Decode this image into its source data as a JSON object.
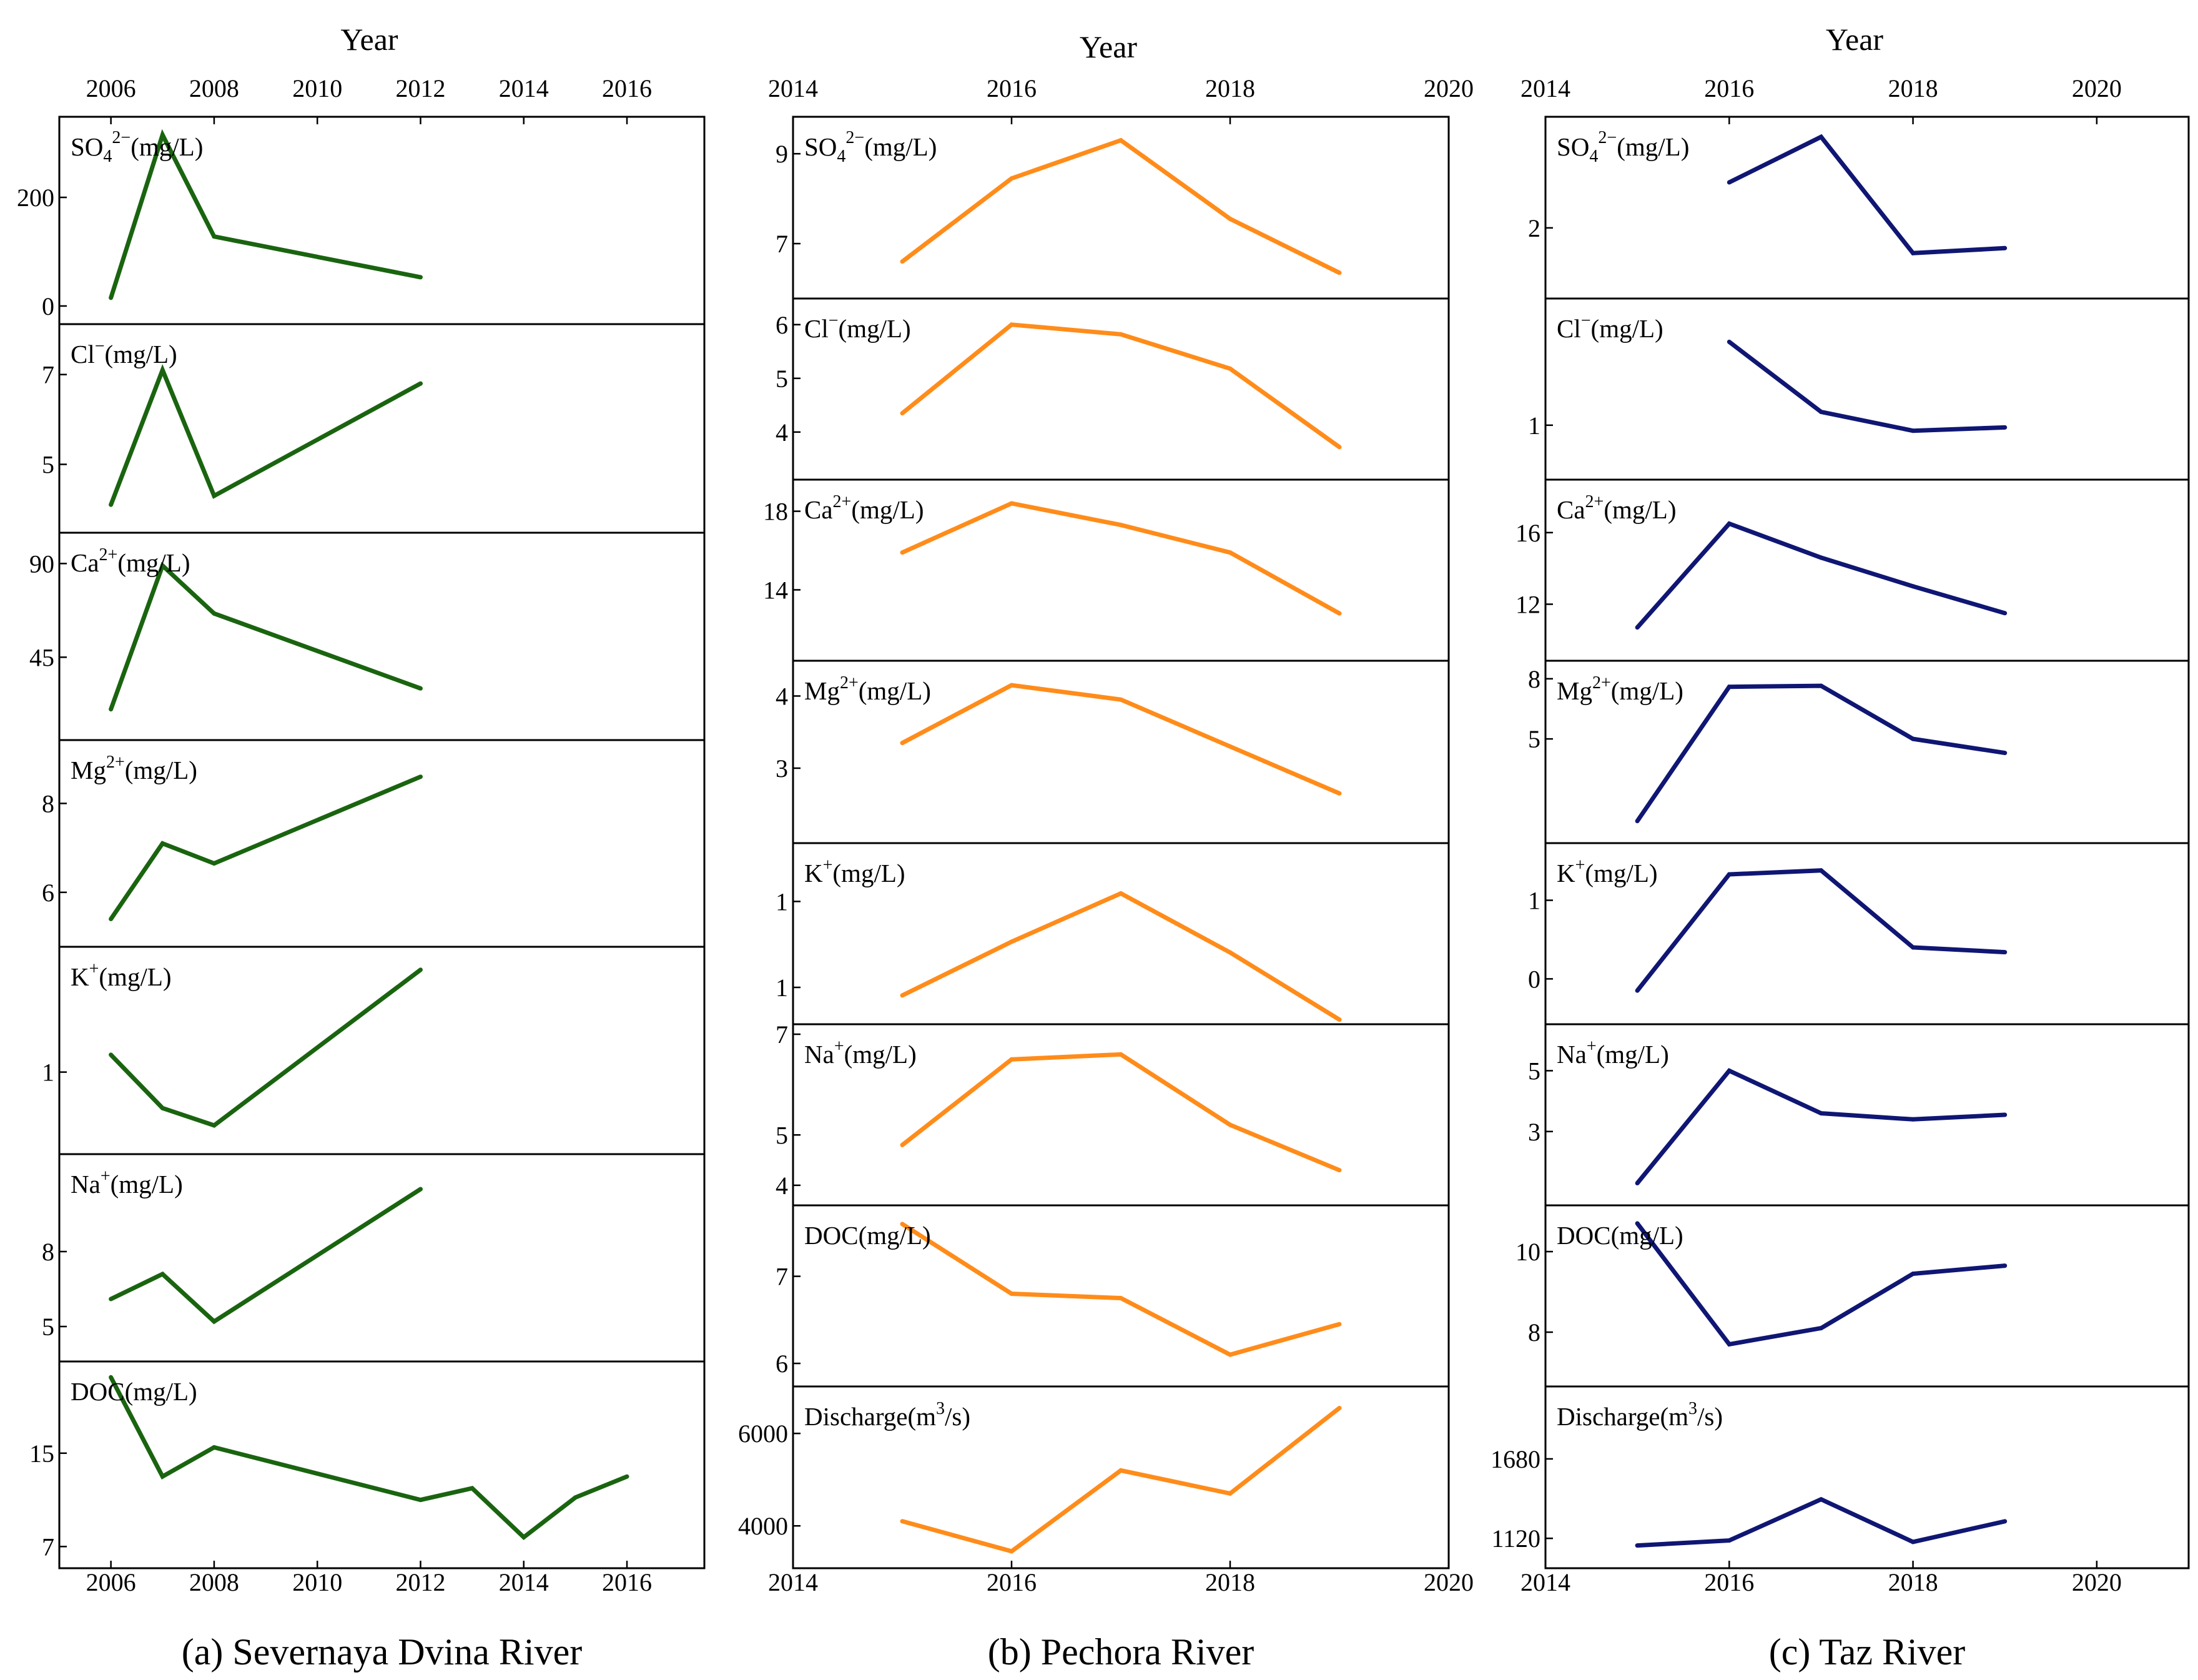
{
  "chart_data": [
    {
      "type": "line",
      "caption": "(a) Severnaya Dvina River",
      "xlabel": "Year",
      "color": "#1a6410",
      "xticks": [
        2006,
        2008,
        2010,
        2012,
        2014,
        2016
      ],
      "xlim": [
        2005,
        2017.5
      ],
      "panels": [
        {
          "label_main": "SO",
          "label_sub": "4",
          "label_sup": "2−",
          "label_tail": "(mg/L)",
          "ylim": [
            -15,
            330
          ],
          "yticks": [
            {
              "v": 0,
              "t": "0"
            },
            {
              "v": 200,
              "t": "200"
            }
          ],
          "x": [
            2006,
            2007,
            2008,
            2012
          ],
          "y": [
            15,
            315,
            128,
            53
          ]
        },
        {
          "label_main": "Cl",
          "label_sup": "−",
          "label_tail": "(mg/L)",
          "ylim": [
            3.7,
            7.9
          ],
          "yticks": [
            {
              "v": 5,
              "t": "5"
            },
            {
              "v": 7,
              "t": "7"
            }
          ],
          "x": [
            2006,
            2007,
            2008,
            2012
          ],
          "y": [
            4.1,
            7.1,
            4.3,
            6.8
          ]
        },
        {
          "label_main": "Ca",
          "label_sup": "2+",
          "label_tail": "(mg/L)",
          "ylim": [
            10,
            100
          ],
          "yticks": [
            {
              "v": 45,
              "t": "45"
            },
            {
              "v": 90,
              "t": "90"
            }
          ],
          "x": [
            2006,
            2007,
            2008,
            2012
          ],
          "y": [
            20,
            89,
            66,
            30
          ]
        },
        {
          "label_main": "Mg",
          "label_sup": "2+",
          "label_tail": "(mg/L)",
          "ylim": [
            5.0,
            9.2
          ],
          "yticks": [
            {
              "v": 6,
              "t": "6"
            },
            {
              "v": 8,
              "t": "8"
            }
          ],
          "x": [
            2006,
            2007,
            2008,
            2012
          ],
          "y": [
            5.4,
            7.1,
            6.65,
            8.6
          ]
        },
        {
          "label_main": "K",
          "label_sup": "+",
          "label_tail": "(mg/L)",
          "ylim": [
            0.5,
            1.8
          ],
          "yticks": [
            {
              "v": 1,
              "t": "1"
            }
          ],
          "x": [
            2006,
            2007,
            2008,
            2012
          ],
          "y": [
            1.12,
            0.75,
            0.63,
            1.71
          ]
        },
        {
          "label_main": "Na",
          "label_sup": "+",
          "label_tail": "(mg/L)",
          "ylim": [
            4.0,
            11.5
          ],
          "yticks": [
            {
              "v": 5,
              "t": "5"
            },
            {
              "v": 8,
              "t": "8"
            }
          ],
          "x": [
            2006,
            2007,
            2008,
            2012
          ],
          "y": [
            6.1,
            7.1,
            5.2,
            10.5
          ]
        },
        {
          "label_main": "DOC",
          "label_tail": "(mg/L)",
          "ylim": [
            6.0,
            22.0
          ],
          "yticks": [
            {
              "v": 7,
              "t": "7"
            },
            {
              "v": 15,
              "t": "15"
            }
          ],
          "x": [
            2006,
            2007,
            2008,
            2012,
            2013,
            2014,
            2015,
            2016
          ],
          "y": [
            21.5,
            13.0,
            15.5,
            11.0,
            12.0,
            7.8,
            11.2,
            13.0
          ]
        }
      ]
    },
    {
      "type": "line",
      "caption": "(b) Pechora River",
      "xlabel": "Year",
      "color": "#ff8c1a",
      "xticks": [
        2014,
        2016,
        2018,
        2020
      ],
      "xlim": [
        2014,
        2020
      ],
      "panels": [
        {
          "label_main": "SO",
          "label_sub": "4",
          "label_sup": "2−",
          "label_tail": "(mg/L)",
          "ylim": [
            6.0,
            9.6
          ],
          "yticks": [
            {
              "v": 7,
              "t": "7"
            },
            {
              "v": 9,
              "t": "9"
            }
          ],
          "x": [
            2015,
            2016,
            2017,
            2018,
            2019
          ],
          "y": [
            6.6,
            8.45,
            9.3,
            7.55,
            6.35
          ]
        },
        {
          "label_main": "Cl",
          "label_sup": "−",
          "label_tail": "(mg/L)",
          "ylim": [
            3.3,
            6.3
          ],
          "yticks": [
            {
              "v": 4,
              "t": "4"
            },
            {
              "v": 5,
              "t": "5"
            },
            {
              "v": 6,
              "t": "6"
            }
          ],
          "x": [
            2015,
            2016,
            2017,
            2018,
            2019
          ],
          "y": [
            4.35,
            6.0,
            5.82,
            5.18,
            3.72
          ]
        },
        {
          "label_main": "Ca",
          "label_sup": "2+",
          "label_tail": "(mg/L)",
          "ylim": [
            10.9,
            19.1
          ],
          "yticks": [
            {
              "v": 14,
              "t": "14"
            },
            {
              "v": 18,
              "t": "18"
            }
          ],
          "x": [
            2015,
            2016,
            2017,
            2018,
            2019
          ],
          "y": [
            15.9,
            18.4,
            17.3,
            15.9,
            12.8
          ]
        },
        {
          "label_main": "Mg",
          "label_sup": "2+",
          "label_tail": "(mg/L)",
          "ylim": [
            2.1,
            4.35
          ],
          "yticks": [
            {
              "v": 3,
              "t": "3"
            },
            {
              "v": 4,
              "t": "4"
            }
          ],
          "x": [
            2015,
            2016,
            2017,
            2018,
            2019
          ],
          "y": [
            3.35,
            4.15,
            3.95,
            3.3,
            2.65
          ]
        },
        {
          "label_main": "K",
          "label_sup": "+",
          "label_tail": "(mg/L)",
          "ylim": [
            0.7,
            1.3
          ],
          "yticks": [
            {
              "v": 0.8,
              "t": "1"
            },
            {
              "v": 1.12,
              "t": "1"
            }
          ],
          "x": [
            2015,
            2016,
            2017,
            2018,
            2019
          ],
          "y": [
            0.77,
            0.97,
            1.15,
            0.93,
            0.68
          ]
        },
        {
          "label_main": "Na",
          "label_sup": "+",
          "label_tail": "(mg/L)",
          "ylim": [
            3.8,
            7.0
          ],
          "yticks": [
            {
              "v": 4,
              "t": "4"
            },
            {
              "v": 5,
              "t": "5"
            },
            {
              "v": 7,
              "t": "7"
            }
          ],
          "x": [
            2015,
            2016,
            2017,
            2018,
            2019
          ],
          "y": [
            4.8,
            6.5,
            6.6,
            5.2,
            4.3
          ]
        },
        {
          "label_main": "DOC",
          "label_tail": "(mg/L)",
          "ylim": [
            5.85,
            7.7
          ],
          "yticks": [
            {
              "v": 6,
              "t": "6"
            },
            {
              "v": 7,
              "t": "7"
            }
          ],
          "x": [
            2015,
            2016,
            2017,
            2018,
            2019
          ],
          "y": [
            7.6,
            6.8,
            6.75,
            6.1,
            6.45
          ]
        },
        {
          "label_main": "Discharge",
          "label_tail": "(m",
          "label_sup2": "3",
          "label_tail2": "/s)",
          "ylim": [
            3300,
            6800
          ],
          "yticks": [
            {
              "v": 4000,
              "t": "4000"
            },
            {
              "v": 6000,
              "t": "6000"
            }
          ],
          "x": [
            2015,
            2016,
            2017,
            2018,
            2019
          ],
          "y": [
            4100,
            3450,
            5200,
            4700,
            6550
          ]
        }
      ]
    },
    {
      "type": "line",
      "caption": "(c) Taz River",
      "xlabel": "Year",
      "color": "#0f1673",
      "xticks": [
        2014,
        2016,
        2018,
        2020
      ],
      "xlim": [
        2014,
        2021
      ],
      "panels": [
        {
          "label_main": "SO",
          "label_sub": "4",
          "label_sup": "2−",
          "label_tail": "(mg/L)",
          "ylim": [
            1.4,
            3.0
          ],
          "yticks": [
            {
              "v": 2,
              "t": "2"
            }
          ],
          "x": [
            2016,
            2017,
            2018,
            2019
          ],
          "y": [
            2.45,
            2.9,
            1.75,
            1.8
          ]
        },
        {
          "label_main": "Cl",
          "label_sup": "−",
          "label_tail": "(mg/L)",
          "ylim": [
            0.6,
            2.05
          ],
          "yticks": [
            {
              "v": 1,
              "t": "1"
            }
          ],
          "x": [
            2016,
            2017,
            2018,
            2019
          ],
          "y": [
            1.75,
            1.12,
            0.95,
            0.98
          ]
        },
        {
          "label_main": "Ca",
          "label_sup": "2+",
          "label_tail": "(mg/L)",
          "ylim": [
            9.4,
            18.4
          ],
          "yticks": [
            {
              "v": 12,
              "t": "12"
            },
            {
              "v": 16,
              "t": "16"
            }
          ],
          "x": [
            2015,
            2016,
            2017,
            2018,
            2019
          ],
          "y": [
            10.7,
            16.5,
            14.6,
            13.0,
            11.5
          ]
        },
        {
          "label_main": "Mg",
          "label_sup": "2+",
          "label_tail": "(mg/L)",
          "ylim": [
            0.3,
            8.4
          ],
          "yticks": [
            {
              "v": 5,
              "t": "5"
            },
            {
              "v": 8,
              "t": "8"
            }
          ],
          "x": [
            2015,
            2016,
            2017,
            2018,
            2019
          ],
          "y": [
            0.9,
            7.6,
            7.65,
            5.0,
            4.3
          ]
        },
        {
          "label_main": "K",
          "label_sup": "+",
          "label_tail": "(mg/L)",
          "ylim": [
            -0.45,
            1.6
          ],
          "yticks": [
            {
              "v": 0,
              "t": "0"
            },
            {
              "v": 1,
              "t": "1"
            }
          ],
          "x": [
            2015,
            2016,
            2017,
            2018,
            2019
          ],
          "y": [
            -0.15,
            1.33,
            1.38,
            0.4,
            0.34
          ]
        },
        {
          "label_main": "Na",
          "label_sup": "+",
          "label_tail": "(mg/L)",
          "ylim": [
            0.9,
            6.2
          ],
          "yticks": [
            {
              "v": 3,
              "t": "3"
            },
            {
              "v": 5,
              "t": "5"
            }
          ],
          "x": [
            2015,
            2016,
            2017,
            2018,
            2019
          ],
          "y": [
            1.3,
            5.0,
            3.6,
            3.4,
            3.55
          ]
        },
        {
          "label_main": "DOC",
          "label_tail": "(mg/L)",
          "ylim": [
            6.9,
            10.9
          ],
          "yticks": [
            {
              "v": 8,
              "t": "8"
            },
            {
              "v": 10,
              "t": "10"
            }
          ],
          "x": [
            2015,
            2016,
            2017,
            2018,
            2019
          ],
          "y": [
            10.7,
            7.7,
            8.1,
            9.45,
            9.65
          ]
        },
        {
          "label_main": "Discharge",
          "label_tail": "(m",
          "label_sup2": "3",
          "label_tail2": "/s)",
          "ylim": [
            980,
            2120
          ],
          "yticks": [
            {
              "v": 1120,
              "t": "1120"
            },
            {
              "v": 1680,
              "t": "1680"
            }
          ],
          "x": [
            2015,
            2016,
            2017,
            2018,
            2019
          ],
          "y": [
            1070,
            1105,
            1395,
            1095,
            1240
          ]
        }
      ]
    }
  ]
}
